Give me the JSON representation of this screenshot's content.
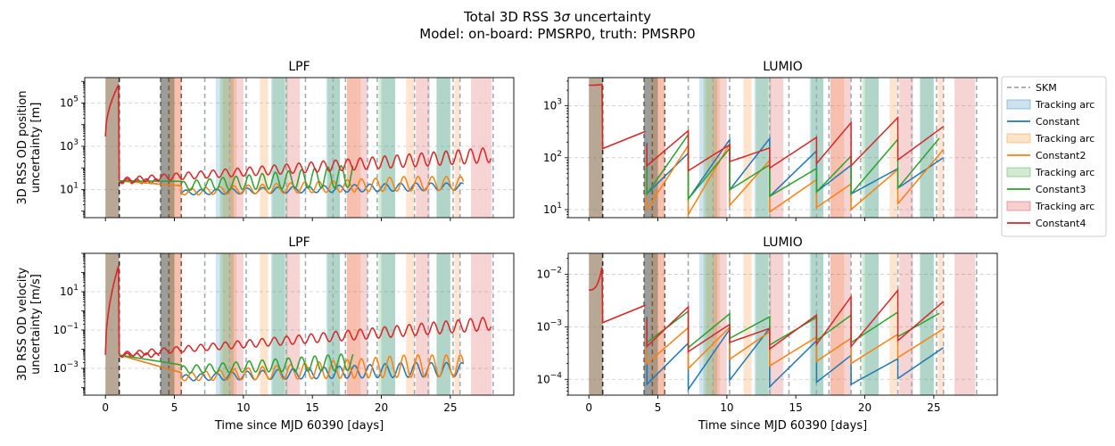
{
  "figure": {
    "title_line1_prefix": "Total 3D RSS 3",
    "title_sigma": "σ",
    "title_line1_suffix": " uncertainty",
    "title_line2": "Model: on-board: PMSRP0, truth: PMSRP0"
  },
  "legend": {
    "items": [
      {
        "label": "SKM",
        "kind": "dash",
        "color": "#999999"
      },
      {
        "label": "Tracking arc",
        "kind": "patch",
        "color": "#1f77b4"
      },
      {
        "label": "Constant",
        "kind": "line",
        "color": "#1f77b4"
      },
      {
        "label": "Tracking arc",
        "kind": "patch",
        "color": "#ff7f0e"
      },
      {
        "label": "Constant2",
        "kind": "line",
        "color": "#ff7f0e"
      },
      {
        "label": "Tracking arc",
        "kind": "patch",
        "color": "#2ca02c"
      },
      {
        "label": "Constant3",
        "kind": "line",
        "color": "#2ca02c"
      },
      {
        "label": "Tracking arc",
        "kind": "patch",
        "color": "#d62728"
      },
      {
        "label": "Constant4",
        "kind": "line",
        "color": "#d62728"
      }
    ]
  },
  "colors": {
    "blue": "#1f77b4",
    "orange": "#ff7f0e",
    "green": "#2ca02c",
    "red": "#d62728",
    "skm": "#999999",
    "grid": "#cccccc"
  },
  "chart_data": [
    {
      "type": "line",
      "title": "LPF",
      "ylabel_line1": "3D RSS OD position",
      "ylabel_line2": "uncertainty [m]",
      "xlabel": "",
      "yscale": "log",
      "xlim": [
        -1.5,
        29.6
      ],
      "ylim": [
        0.5,
        1500000
      ],
      "yticks": [
        {
          "v": 10,
          "b": "10",
          "e": "1"
        },
        {
          "v": 1000,
          "b": "10",
          "e": "3"
        },
        {
          "v": 100000,
          "b": "10",
          "e": "5"
        }
      ],
      "xticks": [
        0,
        5,
        10,
        15,
        20,
        25
      ],
      "show_xticklabels": false,
      "grid": "y dashed",
      "start": 2800,
      "peak": 800000,
      "base": 25,
      "end": 900,
      "series": [
        {
          "name": "Constant",
          "low": 5,
          "high": 20
        },
        {
          "name": "Constant2",
          "low": 5,
          "high": 40
        },
        {
          "name": "Constant3",
          "low": 8,
          "high": 250
        },
        {
          "name": "Constant4",
          "low": 30,
          "high": 900
        }
      ]
    },
    {
      "type": "line",
      "title": "LUMIO",
      "ylabel_line1": "",
      "ylabel_line2": "",
      "xlabel": "",
      "yscale": "log",
      "xlim": [
        -1.5,
        29.6
      ],
      "ylim": [
        7,
        3500
      ],
      "yticks": [
        {
          "v": 10,
          "b": "10",
          "e": "1"
        },
        {
          "v": 100,
          "b": "10",
          "e": "2"
        },
        {
          "v": 1000,
          "b": "10",
          "e": "3"
        }
      ],
      "xticks": [
        0,
        5,
        10,
        15,
        20,
        25
      ],
      "show_xticklabels": false,
      "grid": "y dashed",
      "start": 2500,
      "peak": 2600,
      "base": 150,
      "series": [
        {
          "name": "Constant",
          "low": 20,
          "high": 250
        },
        {
          "name": "Constant2",
          "low": 10,
          "high": 200
        },
        {
          "name": "Constant3",
          "low": 20,
          "high": 300
        },
        {
          "name": "Constant4",
          "low": 50,
          "high": 600
        }
      ]
    },
    {
      "type": "line",
      "title": "LPF",
      "ylabel_line1": "3D RSS OD velocity",
      "ylabel_line2": "uncertainty [m/s]",
      "xlabel": "Time since MJD 60390 [days]",
      "yscale": "log",
      "xlim": [
        -1.5,
        29.6
      ],
      "ylim": [
        4e-05,
        1000
      ],
      "yticks": [
        {
          "v": 0.001,
          "b": "10",
          "e": "−3"
        },
        {
          "v": 0.1,
          "b": "10",
          "e": "−1"
        },
        {
          "v": 10,
          "b": "10",
          "e": "1"
        }
      ],
      "xticks": [
        0,
        5,
        10,
        15,
        20,
        25
      ],
      "show_xticklabels": true,
      "grid": "y dashed",
      "start": 0.005,
      "peak": 300,
      "base": 0.005,
      "end": 0.5,
      "series": [
        {
          "name": "Constant",
          "low": 0.0002,
          "high": 0.002
        },
        {
          "name": "Constant2",
          "low": 0.0002,
          "high": 0.005
        },
        {
          "name": "Constant3",
          "low": 0.0005,
          "high": 0.01
        },
        {
          "name": "Constant4",
          "low": 0.001,
          "high": 0.5
        }
      ]
    },
    {
      "type": "line",
      "title": "LUMIO",
      "ylabel_line1": "",
      "ylabel_line2": "",
      "xlabel": "Time since MJD 60390 [days]",
      "yscale": "log",
      "xlim": [
        -1.5,
        29.6
      ],
      "ylim": [
        5e-05,
        0.025
      ],
      "yticks": [
        {
          "v": 0.0001,
          "b": "10",
          "e": "−4"
        },
        {
          "v": 0.001,
          "b": "10",
          "e": "−3"
        },
        {
          "v": 0.01,
          "b": "10",
          "e": "−2"
        }
      ],
      "xticks": [
        0,
        5,
        10,
        15,
        20,
        25
      ],
      "show_xticklabels": true,
      "grid": "y dashed",
      "start": 0.005,
      "peak": 0.016,
      "base": 0.0012,
      "series": [
        {
          "name": "Constant",
          "low": 8e-05,
          "high": 0.001
        },
        {
          "name": "Constant2",
          "low": 0.0002,
          "high": 0.001
        },
        {
          "name": "Constant3",
          "low": 0.0005,
          "high": 0.002
        },
        {
          "name": "Constant4",
          "low": 0.0003,
          "high": 0.005
        }
      ]
    }
  ],
  "arcs": {
    "grey": [
      [
        0,
        1
      ],
      [
        4,
        5
      ]
    ],
    "blue": [
      [
        4,
        5
      ],
      [
        8,
        9
      ],
      [
        12,
        13
      ],
      [
        16,
        17
      ],
      [
        20,
        21
      ],
      [
        24,
        25
      ]
    ],
    "orange": [
      [
        4.5,
        5.5
      ],
      [
        8.5,
        9.5
      ],
      [
        11.2,
        11.8
      ],
      [
        17.5,
        18.5
      ],
      [
        21.8,
        22.4
      ],
      [
        25.3,
        25.7
      ]
    ],
    "green": [
      [
        8.3,
        9.3
      ],
      [
        12.1,
        13.2
      ],
      [
        16.1,
        17
      ],
      [
        19.8,
        21
      ],
      [
        24,
        25
      ]
    ],
    "red": [
      [
        5,
        5.5
      ],
      [
        9,
        10
      ],
      [
        13.1,
        14.1
      ],
      [
        17.5,
        19
      ],
      [
        22.5,
        23.5
      ],
      [
        26.5,
        28
      ]
    ]
  },
  "skm_lines": [
    1,
    4,
    4.6,
    5.5,
    7.2,
    9,
    10.2,
    13.1,
    14.5,
    16.5,
    17.4,
    19,
    19.7,
    22.4,
    23.4,
    25.2,
    25.7,
    28.1
  ]
}
